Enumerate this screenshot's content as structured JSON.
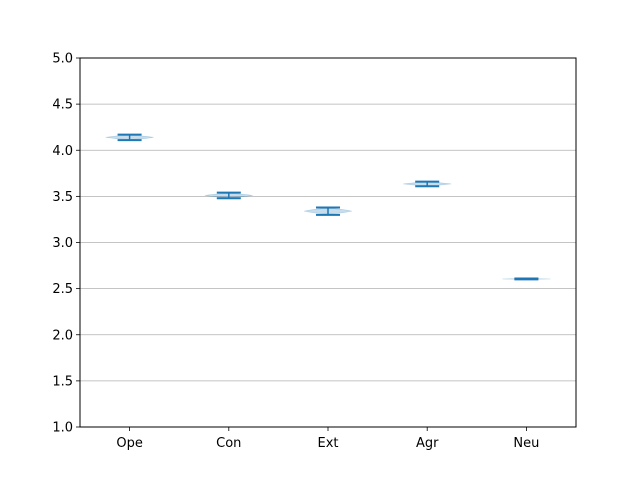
{
  "chart_data": {
    "type": "violin",
    "title": "",
    "xlabel": "",
    "ylabel": "",
    "categories": [
      "Ope",
      "Con",
      "Ext",
      "Agr",
      "Neu"
    ],
    "ylim": [
      1.0,
      5.0
    ],
    "yticks": [
      1.0,
      1.5,
      2.0,
      2.5,
      3.0,
      3.5,
      4.0,
      4.5,
      5.0
    ],
    "ytick_labels": [
      "1.0",
      "1.5",
      "2.0",
      "2.5",
      "3.0",
      "3.5",
      "4.0",
      "4.5",
      "5.0"
    ],
    "grid": "horizontal",
    "series": [
      {
        "category": "Ope",
        "min": 4.11,
        "max": 4.17,
        "median": 4.14
      },
      {
        "category": "Con",
        "min": 3.48,
        "max": 3.54,
        "median": 3.51
      },
      {
        "category": "Ext",
        "min": 3.3,
        "max": 3.38,
        "median": 3.34
      },
      {
        "category": "Agr",
        "min": 3.61,
        "max": 3.66,
        "median": 3.635
      },
      {
        "category": "Neu",
        "min": 2.6,
        "max": 2.61,
        "median": 2.605
      }
    ],
    "colors": {
      "violin": "#1f77b4",
      "grid": "#b0b0b0",
      "axis": "#000000"
    }
  }
}
